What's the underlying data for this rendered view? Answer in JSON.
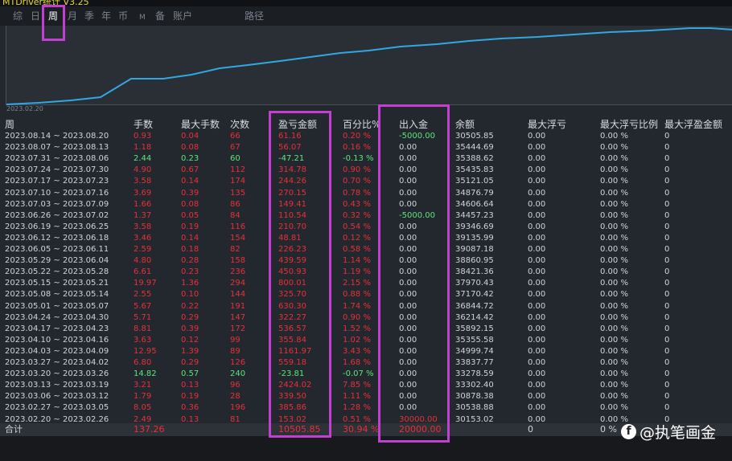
{
  "window": {
    "title": "MTDriver统计 V3.25"
  },
  "tabs": [
    "综",
    "日",
    "周",
    "月",
    "季",
    "年",
    "币",
    "M",
    "备",
    "账户",
    "路径"
  ],
  "active_tab": "周",
  "chart": {
    "start_date": "2023.02.20",
    "line_color": "#2fa9e0"
  },
  "columns": [
    "周",
    "手数",
    "最大手数",
    "次数",
    "盈亏金额",
    "百分比%",
    "出入金",
    "余额",
    "最大浮亏",
    "最大浮亏比例",
    "最大浮盈金额"
  ],
  "rows": [
    {
      "week": "2023.08.14 ~ 2023.08.20",
      "lots": "0.93",
      "max_lots": "0.04",
      "count": "66",
      "pnl": "61.16",
      "pct": "0.20 %",
      "flow": "-5000.00",
      "balance": "30505.85",
      "max_dd": "0.00",
      "max_dd_pct": "0.00 %",
      "max_profit": "0",
      "tone": "red"
    },
    {
      "week": "2023.08.07 ~ 2023.08.13",
      "lots": "1.18",
      "max_lots": "0.08",
      "count": "67",
      "pnl": "56.07",
      "pct": "0.16 %",
      "flow": "0.00",
      "balance": "35444.69",
      "max_dd": "0.00",
      "max_dd_pct": "0.00 %",
      "max_profit": "0",
      "tone": "red"
    },
    {
      "week": "2023.07.31 ~ 2023.08.06",
      "lots": "2.44",
      "max_lots": "0.23",
      "count": "60",
      "pnl": "-47.21",
      "pct": "-0.13 %",
      "flow": "0.00",
      "balance": "35388.62",
      "max_dd": "0.00",
      "max_dd_pct": "0.00 %",
      "max_profit": "0",
      "tone": "green"
    },
    {
      "week": "2023.07.24 ~ 2023.07.30",
      "lots": "4.90",
      "max_lots": "0.67",
      "count": "112",
      "pnl": "314.78",
      "pct": "0.90 %",
      "flow": "0.00",
      "balance": "35435.83",
      "max_dd": "0.00",
      "max_dd_pct": "0.00 %",
      "max_profit": "0",
      "tone": "red"
    },
    {
      "week": "2023.07.17 ~ 2023.07.23",
      "lots": "3.58",
      "max_lots": "0.14",
      "count": "174",
      "pnl": "244.26",
      "pct": "0.70 %",
      "flow": "0.00",
      "balance": "35121.05",
      "max_dd": "0.00",
      "max_dd_pct": "0.00 %",
      "max_profit": "0",
      "tone": "red"
    },
    {
      "week": "2023.07.10 ~ 2023.07.16",
      "lots": "3.69",
      "max_lots": "0.39",
      "count": "135",
      "pnl": "270.15",
      "pct": "0.78 %",
      "flow": "0.00",
      "balance": "34876.79",
      "max_dd": "0.00",
      "max_dd_pct": "0.00 %",
      "max_profit": "0",
      "tone": "red"
    },
    {
      "week": "2023.07.03 ~ 2023.07.09",
      "lots": "1.66",
      "max_lots": "0.08",
      "count": "86",
      "pnl": "149.41",
      "pct": "0.43 %",
      "flow": "0.00",
      "balance": "34606.64",
      "max_dd": "0.00",
      "max_dd_pct": "0.00 %",
      "max_profit": "0",
      "tone": "red"
    },
    {
      "week": "2023.06.26 ~ 2023.07.02",
      "lots": "1.37",
      "max_lots": "0.05",
      "count": "84",
      "pnl": "110.54",
      "pct": "0.32 %",
      "flow": "-5000.00",
      "balance": "34457.23",
      "max_dd": "0.00",
      "max_dd_pct": "0.00 %",
      "max_profit": "0",
      "tone": "red"
    },
    {
      "week": "2023.06.19 ~ 2023.06.25",
      "lots": "3.58",
      "max_lots": "0.19",
      "count": "116",
      "pnl": "210.70",
      "pct": "0.54 %",
      "flow": "0.00",
      "balance": "39346.69",
      "max_dd": "0.00",
      "max_dd_pct": "0.00 %",
      "max_profit": "0",
      "tone": "red"
    },
    {
      "week": "2023.06.12 ~ 2023.06.18",
      "lots": "3.46",
      "max_lots": "0.14",
      "count": "154",
      "pnl": "48.81",
      "pct": "0.12 %",
      "flow": "0.00",
      "balance": "39135.99",
      "max_dd": "0.00",
      "max_dd_pct": "0.00 %",
      "max_profit": "0",
      "tone": "red"
    },
    {
      "week": "2023.06.05 ~ 2023.06.11",
      "lots": "2.59",
      "max_lots": "0.18",
      "count": "82",
      "pnl": "226.23",
      "pct": "0.58 %",
      "flow": "0.00",
      "balance": "39087.18",
      "max_dd": "0.00",
      "max_dd_pct": "0.00 %",
      "max_profit": "0",
      "tone": "red"
    },
    {
      "week": "2023.05.29 ~ 2023.06.04",
      "lots": "4.80",
      "max_lots": "0.28",
      "count": "158",
      "pnl": "439.59",
      "pct": "1.14 %",
      "flow": "0.00",
      "balance": "38860.95",
      "max_dd": "0.00",
      "max_dd_pct": "0.00 %",
      "max_profit": "0",
      "tone": "red"
    },
    {
      "week": "2023.05.22 ~ 2023.05.28",
      "lots": "6.61",
      "max_lots": "0.23",
      "count": "236",
      "pnl": "450.93",
      "pct": "1.19 %",
      "flow": "0.00",
      "balance": "38421.36",
      "max_dd": "0.00",
      "max_dd_pct": "0.00 %",
      "max_profit": "0",
      "tone": "red"
    },
    {
      "week": "2023.05.15 ~ 2023.05.21",
      "lots": "19.97",
      "max_lots": "1.36",
      "count": "294",
      "pnl": "800.01",
      "pct": "2.15 %",
      "flow": "0.00",
      "balance": "37970.43",
      "max_dd": "0.00",
      "max_dd_pct": "0.00 %",
      "max_profit": "0",
      "tone": "red"
    },
    {
      "week": "2023.05.08 ~ 2023.05.14",
      "lots": "2.55",
      "max_lots": "0.10",
      "count": "144",
      "pnl": "325.70",
      "pct": "0.88 %",
      "flow": "0.00",
      "balance": "37170.42",
      "max_dd": "0.00",
      "max_dd_pct": "0.00 %",
      "max_profit": "0",
      "tone": "red"
    },
    {
      "week": "2023.05.01 ~ 2023.05.07",
      "lots": "5.67",
      "max_lots": "0.22",
      "count": "191",
      "pnl": "630.30",
      "pct": "1.74 %",
      "flow": "0.00",
      "balance": "36844.72",
      "max_dd": "0.00",
      "max_dd_pct": "0.00 %",
      "max_profit": "0",
      "tone": "red"
    },
    {
      "week": "2023.04.24 ~ 2023.04.30",
      "lots": "5.71",
      "max_lots": "0.29",
      "count": "147",
      "pnl": "322.27",
      "pct": "0.90 %",
      "flow": "0.00",
      "balance": "36214.42",
      "max_dd": "0.00",
      "max_dd_pct": "0.00 %",
      "max_profit": "0",
      "tone": "red"
    },
    {
      "week": "2023.04.17 ~ 2023.04.23",
      "lots": "8.81",
      "max_lots": "0.39",
      "count": "172",
      "pnl": "536.57",
      "pct": "1.52 %",
      "flow": "0.00",
      "balance": "35892.15",
      "max_dd": "0.00",
      "max_dd_pct": "0.00 %",
      "max_profit": "0",
      "tone": "red"
    },
    {
      "week": "2023.04.10 ~ 2023.04.16",
      "lots": "3.63",
      "max_lots": "0.12",
      "count": "99",
      "pnl": "355.84",
      "pct": "1.02 %",
      "flow": "0.00",
      "balance": "35355.58",
      "max_dd": "0.00",
      "max_dd_pct": "0.00 %",
      "max_profit": "0",
      "tone": "red"
    },
    {
      "week": "2023.04.03 ~ 2023.04.09",
      "lots": "12.95",
      "max_lots": "1.39",
      "count": "89",
      "pnl": "1161.97",
      "pct": "3.43 %",
      "flow": "0.00",
      "balance": "34999.74",
      "max_dd": "0.00",
      "max_dd_pct": "0.00 %",
      "max_profit": "0",
      "tone": "red"
    },
    {
      "week": "2023.03.27 ~ 2023.04.02",
      "lots": "6.80",
      "max_lots": "0.29",
      "count": "126",
      "pnl": "559.18",
      "pct": "1.68 %",
      "flow": "0.00",
      "balance": "33837.77",
      "max_dd": "0.00",
      "max_dd_pct": "0.00 %",
      "max_profit": "0",
      "tone": "red"
    },
    {
      "week": "2023.03.20 ~ 2023.03.26",
      "lots": "14.82",
      "max_lots": "0.57",
      "count": "240",
      "pnl": "-23.81",
      "pct": "-0.07 %",
      "flow": "0.00",
      "balance": "33278.59",
      "max_dd": "0.00",
      "max_dd_pct": "0.00 %",
      "max_profit": "0",
      "tone": "green"
    },
    {
      "week": "2023.03.13 ~ 2023.03.19",
      "lots": "3.21",
      "max_lots": "0.13",
      "count": "96",
      "pnl": "2424.02",
      "pct": "7.85 %",
      "flow": "0.00",
      "balance": "33302.40",
      "max_dd": "0.00",
      "max_dd_pct": "0.00 %",
      "max_profit": "0",
      "tone": "red"
    },
    {
      "week": "2023.03.06 ~ 2023.03.12",
      "lots": "1.79",
      "max_lots": "0.19",
      "count": "28",
      "pnl": "339.50",
      "pct": "1.11 %",
      "flow": "0.00",
      "balance": "30878.38",
      "max_dd": "0.00",
      "max_dd_pct": "0.00 %",
      "max_profit": "0",
      "tone": "red"
    },
    {
      "week": "2023.02.27 ~ 2023.03.05",
      "lots": "8.05",
      "max_lots": "0.36",
      "count": "196",
      "pnl": "385.86",
      "pct": "1.28 %",
      "flow": "0.00",
      "balance": "30538.88",
      "max_dd": "0.00",
      "max_dd_pct": "0.00 %",
      "max_profit": "0",
      "tone": "red"
    },
    {
      "week": "2023.02.20 ~ 2023.02.26",
      "lots": "2.49",
      "max_lots": "0.13",
      "count": "81",
      "pnl": "153.02",
      "pct": "0.51 %",
      "flow": "30000.00",
      "balance": "30153.02",
      "max_dd": "0.00",
      "max_dd_pct": "0.00 %",
      "max_profit": "0",
      "tone": "red"
    }
  ],
  "total": {
    "label": "合计",
    "lots": "137.26",
    "pnl": "10505.85",
    "pct": "30.94 %",
    "flow": "20000.00",
    "max_dd": "0",
    "max_dd_pct": "0 %"
  },
  "watermark": {
    "text": "@执笔画金",
    "icon": "f-logo-icon"
  },
  "colors": {
    "profit": "#e8303a",
    "loss": "#5ee57a",
    "highlight": "#c23fd1",
    "background": "#23272e"
  }
}
